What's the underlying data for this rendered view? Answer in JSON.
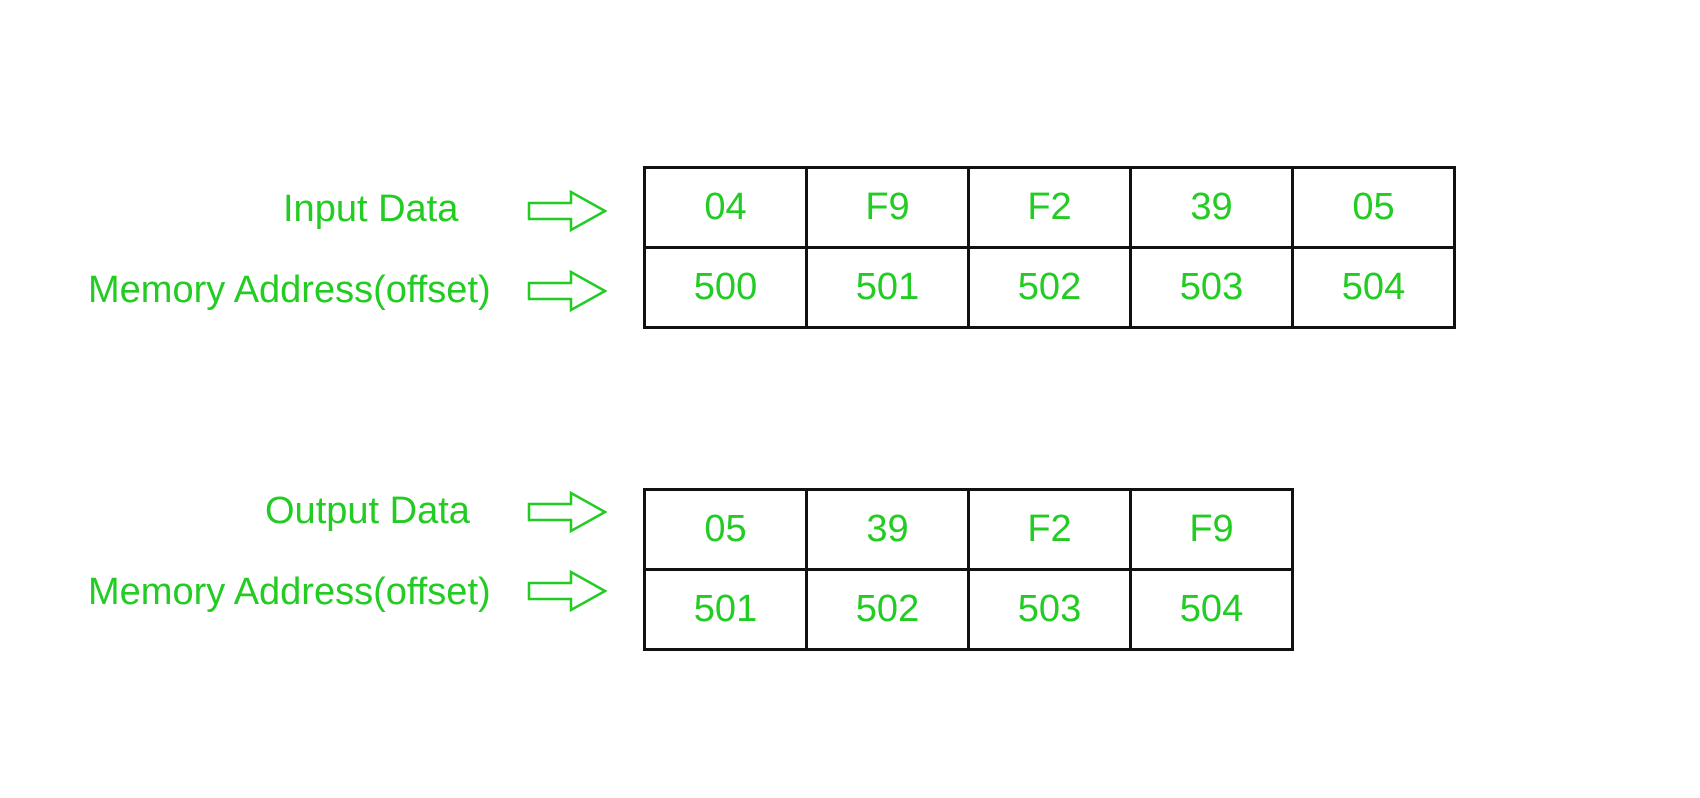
{
  "colors": {
    "text": "#22cc22",
    "cell_border": "#111111",
    "background": "#ffffff"
  },
  "input": {
    "data_label": "Input Data",
    "address_label": "Memory Address(offset)",
    "data": [
      "04",
      "F9",
      "F2",
      "39",
      "05"
    ],
    "addresses": [
      "500",
      "501",
      "502",
      "503",
      "504"
    ]
  },
  "output": {
    "data_label": "Output Data",
    "address_label": "Memory Address(offset)",
    "data": [
      "05",
      "39",
      "F2",
      "F9"
    ],
    "addresses": [
      "501",
      "502",
      "503",
      "504"
    ]
  },
  "icons": {
    "row_pointer": "outline-right-arrow-icon"
  }
}
